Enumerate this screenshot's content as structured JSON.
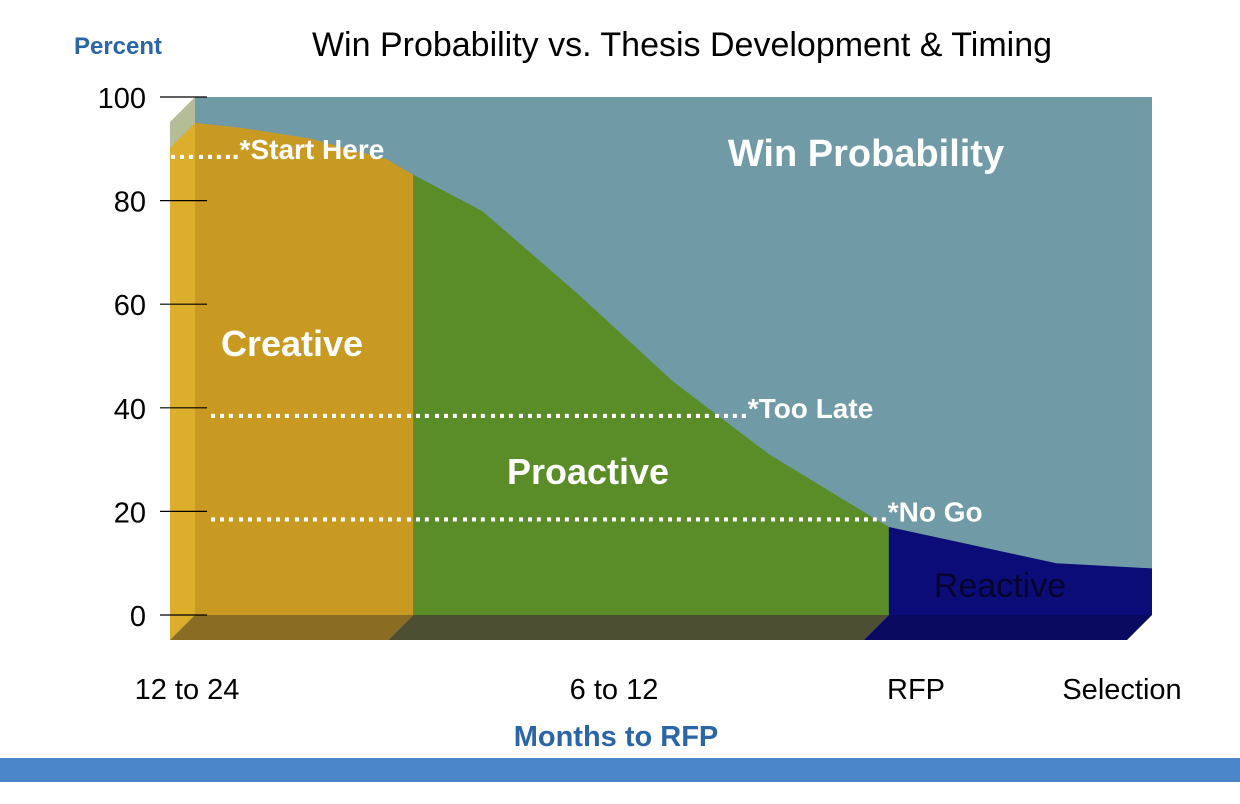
{
  "chart_data": {
    "type": "area",
    "title": "Win Probability vs. Thesis Development & Timing",
    "ylabel": "Percent",
    "xlabel": "Months to RFP",
    "ylim": [
      0,
      100
    ],
    "y_ticks": [
      "0",
      "20",
      "40",
      "60",
      "80",
      "100"
    ],
    "x_tick_labels": [
      "12 to 24",
      "6 to 12",
      "RFP",
      "Selection"
    ],
    "series_label": "Win Probability",
    "curve": [
      {
        "t": 0.0,
        "y": 95
      },
      {
        "t": 0.05,
        "y": 94
      },
      {
        "t": 0.12,
        "y": 92
      },
      {
        "t": 0.2,
        "y": 88
      },
      {
        "t": 0.228,
        "y": 85
      },
      {
        "t": 0.3,
        "y": 78
      },
      {
        "t": 0.4,
        "y": 62
      },
      {
        "t": 0.5,
        "y": 45
      },
      {
        "t": 0.6,
        "y": 31
      },
      {
        "t": 0.68,
        "y": 22
      },
      {
        "t": 0.725,
        "y": 17
      },
      {
        "t": 0.8,
        "y": 14
      },
      {
        "t": 0.9,
        "y": 10
      },
      {
        "t": 1.0,
        "y": 9
      }
    ],
    "regions": [
      {
        "name": "Creative",
        "from": 0.0,
        "to": 0.228,
        "color": "#c99a22"
      },
      {
        "name": "Proactive",
        "from": 0.228,
        "to": 0.725,
        "color": "#5a8c28"
      },
      {
        "name": "Reactive",
        "from": 0.725,
        "to": 1.0,
        "color": "#0c0c78"
      }
    ],
    "annotations": [
      {
        "text": "……..*Start Here",
        "y": 90
      },
      {
        "text": "………………………………………………….*Too Late",
        "y": 40
      },
      {
        "text": "……………………………………………………………….*No Go",
        "y": 20
      }
    ],
    "colors": {
      "win_area": "#6f9aa6",
      "axis": "#000000",
      "title": "#000000",
      "blue_label": "#2a65a8",
      "footer_bar": "#4a85c9"
    }
  }
}
